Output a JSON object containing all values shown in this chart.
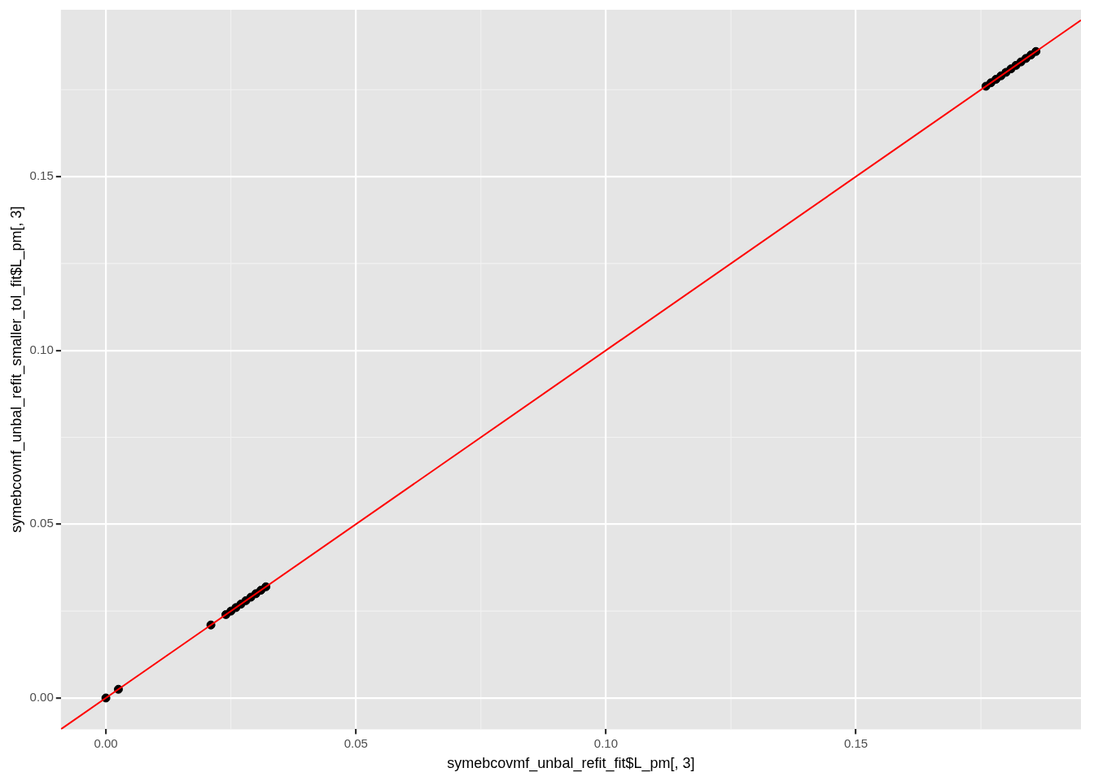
{
  "chart_data": {
    "type": "scatter",
    "xlabel": "symebcovmf_unbal_refit_fit$L_pm[, 3]",
    "ylabel": "symebcovmf_unbal_refit_smaller_tol_fit$L_pm[, 3]",
    "xlim": [
      -0.009,
      0.195
    ],
    "ylim": [
      -0.009,
      0.198
    ],
    "xticks": [
      {
        "value": 0,
        "label": "0.00"
      },
      {
        "value": 0.05,
        "label": "0.05"
      },
      {
        "value": 0.1,
        "label": "0.10"
      },
      {
        "value": 0.15,
        "label": "0.15"
      }
    ],
    "yticks": [
      {
        "value": 0,
        "label": "0.00"
      },
      {
        "value": 0.05,
        "label": "0.05"
      },
      {
        "value": 0.1,
        "label": "0.10"
      },
      {
        "value": 0.15,
        "label": "0.15"
      }
    ],
    "grid": true,
    "legend": false,
    "series": [
      {
        "marker": "circle",
        "color": "#000000",
        "x": [
          0,
          0.0025,
          0.021,
          0.024,
          0.025,
          0.026,
          0.027,
          0.028,
          0.029,
          0.03,
          0.031,
          0.032,
          0.176,
          0.177,
          0.178,
          0.179,
          0.18,
          0.181,
          0.182,
          0.183,
          0.184,
          0.185,
          0.186
        ],
        "values": [
          0,
          0.0025,
          0.021,
          0.024,
          0.025,
          0.026,
          0.027,
          0.028,
          0.029,
          0.03,
          0.031,
          0.032,
          0.176,
          0.177,
          0.178,
          0.179,
          0.18,
          0.181,
          0.182,
          0.183,
          0.184,
          0.185,
          0.186
        ]
      },
      {
        "type": "line",
        "color": "#ff0000",
        "x": [
          -0.009,
          0.195
        ],
        "values": [
          -0.009,
          0.195
        ],
        "line_style": "solid",
        "marker": "none"
      }
    ]
  }
}
